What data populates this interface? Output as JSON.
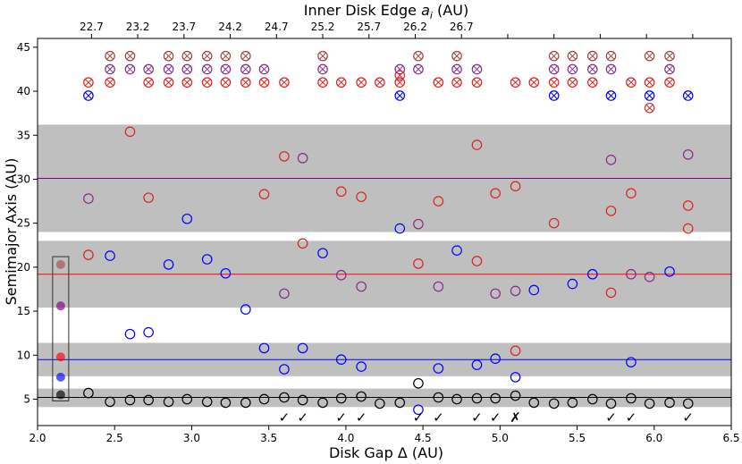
{
  "chart_data": {
    "type": "scatter",
    "title": "",
    "xlabel": "Disk Gap Δ (AU)",
    "ylabel": "Semimajor Axis (AU)",
    "x2label_prefix": "Inner Disk Edge ",
    "x2label_var": "a",
    "x2label_sub": "i",
    "x2label_suffix": " (AU)",
    "xlim": [
      2.0,
      6.5
    ],
    "ylim": [
      2.0,
      46.0
    ],
    "xticks": [
      2.0,
      2.5,
      3.0,
      3.5,
      4.0,
      4.5,
      5.0,
      5.5,
      6.0,
      6.5
    ],
    "xtick_labels": [
      "2.0",
      "2.5",
      "3.0",
      "3.5",
      "4.0",
      "4.5",
      "5.0",
      "5.5",
      "6.0",
      "6.5"
    ],
    "yticks": [
      5,
      10,
      15,
      20,
      25,
      30,
      35,
      40,
      45
    ],
    "ytick_labels": [
      "5",
      "10",
      "15",
      "20",
      "25",
      "30",
      "35",
      "40",
      "45"
    ],
    "top_ticks": [
      2.35,
      2.65,
      2.95,
      3.25,
      3.55,
      3.85,
      4.15,
      4.45,
      4.75,
      5.05,
      5.35,
      5.65,
      5.95,
      6.25
    ],
    "top_tick_labels": [
      "22.7",
      "23.2",
      "23.7",
      "24.2",
      "24.7",
      "25.2",
      "25.7",
      "26.2",
      "26.7"
    ],
    "top_tick_label_positions": [
      2.35,
      2.65,
      2.95,
      3.25,
      3.55,
      3.85,
      4.15,
      4.45,
      4.75
    ],
    "colors": {
      "black": "#000000",
      "blue": "#0000ff",
      "red": "#ff0000",
      "purple": "#800080",
      "band": "#bfbfbf"
    },
    "bands": [
      {
        "y0": 4.1,
        "y1": 6.2
      },
      {
        "y0": 7.6,
        "y1": 11.4
      },
      {
        "y0": 15.4,
        "y1": 23.0
      },
      {
        "y0": 24.0,
        "y1": 36.2
      }
    ],
    "hlines": [
      {
        "y": 5.2,
        "color": "#000000"
      },
      {
        "y": 9.5,
        "color": "#0000ff"
      },
      {
        "y": 19.2,
        "color": "#ff0000"
      },
      {
        "y": 30.1,
        "color": "#800080"
      }
    ],
    "legend_points": [
      {
        "y": 5.5,
        "color": "#000000"
      },
      {
        "y": 7.5,
        "color": "#0000ff"
      },
      {
        "y": 9.8,
        "color": "#ff0000"
      },
      {
        "y": 15.6,
        "color": "#800080"
      },
      {
        "y": 20.3,
        "color": "#a05050"
      }
    ],
    "series": [
      {
        "name": "black",
        "color": "#000000",
        "x": [
          2.33,
          2.47,
          2.6,
          2.72,
          2.85,
          2.97,
          3.1,
          3.22,
          3.35,
          3.47,
          3.6,
          3.72,
          3.85,
          3.97,
          4.1,
          4.22,
          4.35,
          4.47,
          4.6,
          4.72,
          4.85,
          4.97,
          5.1,
          5.22,
          5.35,
          5.47,
          5.6,
          5.72,
          5.85,
          5.97,
          6.1,
          6.22
        ],
        "y": [
          5.7,
          4.7,
          4.9,
          4.9,
          4.7,
          5.0,
          4.7,
          4.6,
          4.6,
          5.0,
          5.2,
          4.9,
          4.6,
          5.1,
          5.3,
          4.5,
          4.6,
          6.8,
          5.2,
          5.0,
          5.1,
          5.1,
          5.4,
          4.6,
          4.5,
          4.6,
          5.0,
          4.5,
          5.1,
          4.5,
          4.6,
          4.5
        ]
      },
      {
        "name": "blue",
        "color": "#0000ff",
        "x": [
          2.47,
          2.6,
          2.72,
          2.85,
          2.97,
          3.1,
          3.22,
          3.35,
          3.47,
          3.6,
          3.72,
          3.85,
          3.97,
          4.1,
          4.35,
          4.47,
          4.6,
          4.72,
          4.85,
          4.97,
          5.1,
          5.22,
          5.47,
          5.6,
          5.85,
          6.1
        ],
        "y": [
          21.3,
          12.4,
          12.6,
          20.3,
          25.5,
          20.9,
          19.3,
          15.2,
          10.8,
          8.4,
          10.8,
          21.6,
          9.5,
          8.7,
          24.4,
          3.8,
          8.5,
          21.9,
          8.9,
          9.6,
          7.5,
          17.4,
          18.1,
          19.2,
          9.2,
          19.5
        ]
      },
      {
        "name": "red",
        "color": "#dd2222",
        "x": [
          2.33,
          2.6,
          2.72,
          3.47,
          3.6,
          3.72,
          3.97,
          4.1,
          4.47,
          4.6,
          4.85,
          4.85,
          4.97,
          5.1,
          5.1,
          5.35,
          5.72,
          5.72,
          5.85,
          6.22,
          6.22
        ],
        "y": [
          21.4,
          35.4,
          27.9,
          28.3,
          32.6,
          22.7,
          28.6,
          28.0,
          20.4,
          27.5,
          33.9,
          20.7,
          28.4,
          29.2,
          10.5,
          25.0,
          26.4,
          17.1,
          28.4,
          27.0,
          24.4
        ]
      },
      {
        "name": "purple",
        "color": "#8a2a8a",
        "x": [
          2.33,
          3.6,
          3.72,
          3.97,
          4.1,
          4.47,
          4.6,
          4.97,
          5.1,
          5.72,
          5.85,
          5.97,
          6.22
        ],
        "y": [
          27.8,
          17.0,
          32.4,
          19.1,
          17.8,
          24.9,
          17.8,
          17.0,
          17.3,
          32.2,
          19.2,
          18.9,
          32.8
        ]
      }
    ],
    "xmarks": [
      {
        "color": "#0000ff",
        "y": 39.5,
        "x": [
          2.33,
          4.35,
          5.35,
          5.72,
          5.97,
          6.22
        ]
      },
      {
        "color": "#dd2222",
        "y": 41.0,
        "x": [
          2.33,
          2.47,
          2.72,
          2.85,
          2.97,
          3.1,
          3.22,
          3.35,
          3.47,
          3.6,
          3.85,
          3.97,
          4.1,
          4.22,
          4.35,
          4.6,
          4.72,
          4.85,
          5.1,
          5.22,
          5.35,
          5.47,
          5.6,
          5.85,
          5.97,
          6.1
        ]
      },
      {
        "color": "#8a2a8a",
        "y": 42.5,
        "x": [
          2.47,
          2.6,
          2.72,
          2.85,
          2.97,
          3.1,
          3.22,
          3.35,
          3.47,
          3.85,
          4.35,
          4.47,
          4.72,
          4.85,
          5.35,
          5.47,
          5.6,
          5.72,
          6.1
        ]
      },
      {
        "color": "#a04040",
        "y": 44.0,
        "x": [
          2.47,
          2.6,
          2.85,
          2.97,
          3.1,
          3.22,
          3.35,
          3.85,
          4.47,
          4.72,
          5.35,
          5.47,
          5.6,
          5.72,
          5.97,
          6.1
        ]
      },
      {
        "color": "#cc3333",
        "y": 38.1,
        "x": [
          5.97
        ]
      },
      {
        "color": "#cc3333",
        "y": 41.8,
        "x": [
          4.35
        ]
      }
    ],
    "checks": [
      {
        "x": 3.6,
        "mark": "✓"
      },
      {
        "x": 3.72,
        "mark": "✓"
      },
      {
        "x": 3.97,
        "mark": "✓"
      },
      {
        "x": 4.1,
        "mark": "✓"
      },
      {
        "x": 4.47,
        "mark": "✓"
      },
      {
        "x": 4.6,
        "mark": "✓"
      },
      {
        "x": 4.85,
        "mark": "✓"
      },
      {
        "x": 4.97,
        "mark": "✓"
      },
      {
        "x": 5.1,
        "mark": "✗"
      },
      {
        "x": 5.72,
        "mark": "✓"
      },
      {
        "x": 5.85,
        "mark": "✓"
      },
      {
        "x": 6.22,
        "mark": "✓"
      }
    ]
  }
}
